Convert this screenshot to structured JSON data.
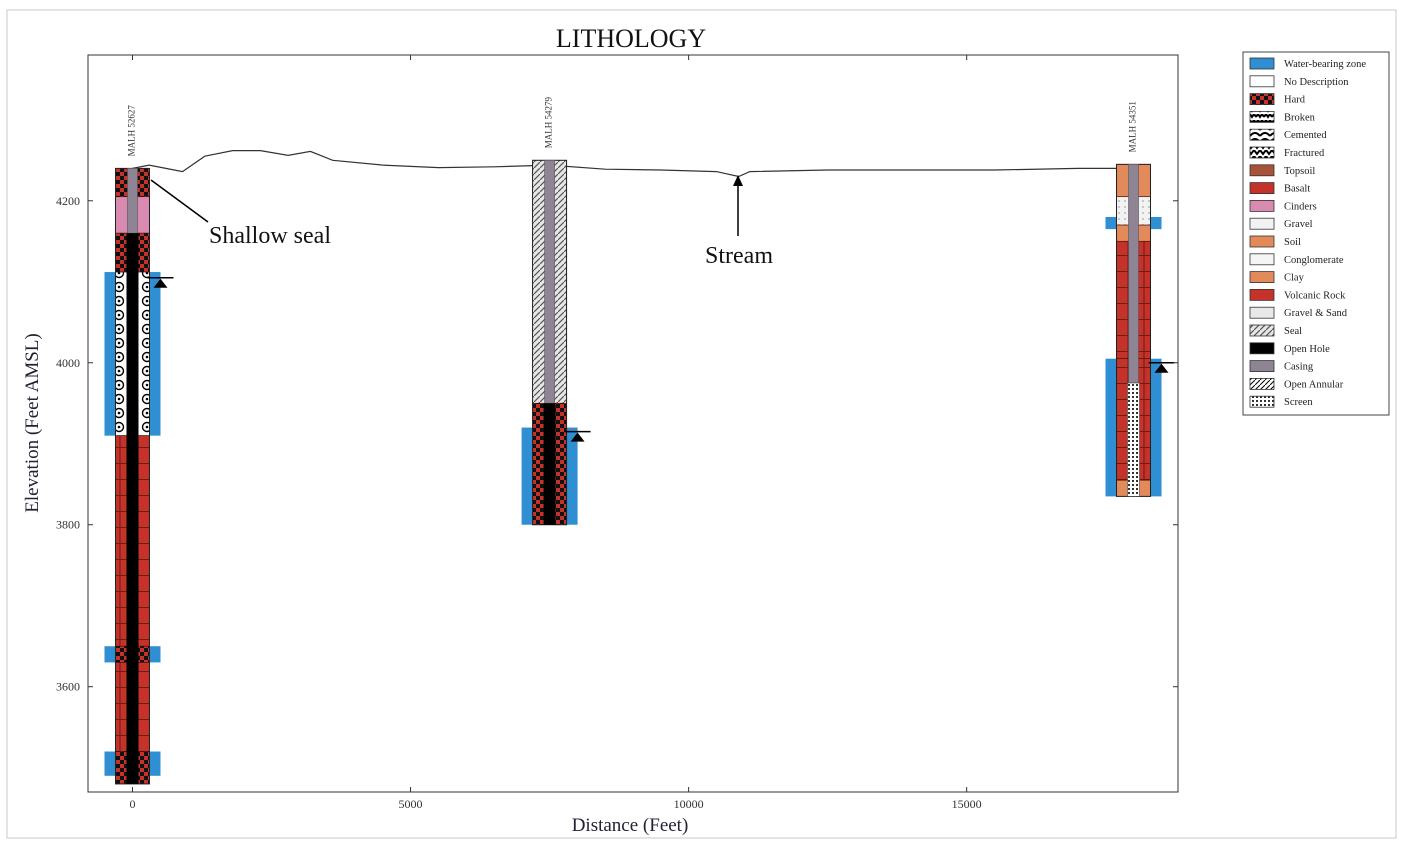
{
  "title": "LITHOLOGY",
  "xlabel": "Distance (Feet)",
  "ylabel": "Elevation (Feet AMSL)",
  "x_ticks": [
    0,
    5000,
    10000,
    15000
  ],
  "y_ticks": [
    3600,
    3800,
    4000,
    4200
  ],
  "x_range": [
    -800,
    18800
  ],
  "y_range": [
    3470,
    4380
  ],
  "colors": {
    "water": "#2f8fd2",
    "basalt": "#c4322a",
    "topsoil": "#a8523a",
    "cinders": "#d98ab0",
    "soil": "#e28a5a",
    "casing": "#8e8494",
    "open_hole": "#000000",
    "seal": "#bfbfbf"
  },
  "annotations": {
    "shallow_seal": "Shallow seal",
    "stream": "Stream"
  },
  "wells": [
    {
      "name": "MALH 52627",
      "x": 0,
      "top": 4240,
      "bottom": 3480,
      "lithology": [
        {
          "top": 4240,
          "bottom": 4205,
          "unit": "Hard"
        },
        {
          "top": 4205,
          "bottom": 4160,
          "unit": "Cinders"
        },
        {
          "top": 4160,
          "bottom": 4112,
          "unit": "Hard"
        },
        {
          "top": 4112,
          "bottom": 3910,
          "unit": "Conglomerate"
        },
        {
          "top": 3910,
          "bottom": 3650,
          "unit": "Basalt"
        },
        {
          "top": 3650,
          "bottom": 3630,
          "unit": "Hard"
        },
        {
          "top": 3630,
          "bottom": 3520,
          "unit": "Basalt"
        },
        {
          "top": 3520,
          "bottom": 3480,
          "unit": "Hard"
        }
      ],
      "water_zones": [
        [
          4112,
          3910
        ],
        [
          3650,
          3630
        ],
        [
          3520,
          3490
        ]
      ],
      "casing": [
        4240,
        4160
      ],
      "open_hole": [
        4160,
        3480
      ],
      "water_level": 4105
    },
    {
      "name": "MALH 54279",
      "x": 7500,
      "top": 4250,
      "bottom": 3800,
      "lithology": [
        {
          "top": 4250,
          "bottom": 3950,
          "unit": "Seal"
        },
        {
          "top": 3950,
          "bottom": 3800,
          "unit": "Hard"
        }
      ],
      "water_zones": [
        [
          3920,
          3800
        ]
      ],
      "casing": [
        4250,
        3950
      ],
      "open_hole": [
        3950,
        3800
      ],
      "water_level": 3915
    },
    {
      "name": "MALH 54351",
      "x": 18000,
      "top": 4245,
      "bottom": 3835,
      "lithology": [
        {
          "top": 4245,
          "bottom": 4205,
          "unit": "Soil"
        },
        {
          "top": 4205,
          "bottom": 4170,
          "unit": "Gravel"
        },
        {
          "top": 4170,
          "bottom": 4150,
          "unit": "Soil"
        },
        {
          "top": 4150,
          "bottom": 4005,
          "unit": "Volcanic Rock"
        },
        {
          "top": 4005,
          "bottom": 3855,
          "unit": "Volcanic Rock"
        },
        {
          "top": 3855,
          "bottom": 3835,
          "unit": "Soil"
        }
      ],
      "water_zones": [
        [
          4180,
          4165
        ],
        [
          4005,
          3835
        ]
      ],
      "casing": [
        4245,
        3975
      ],
      "screen": [
        3975,
        3835
      ],
      "water_level": 4000
    }
  ],
  "ground_profile": [
    [
      0,
      4240
    ],
    [
      300,
      4244
    ],
    [
      600,
      4240
    ],
    [
      900,
      4236
    ],
    [
      1300,
      4255
    ],
    [
      1800,
      4262
    ],
    [
      2300,
      4262
    ],
    [
      2800,
      4256
    ],
    [
      3200,
      4261
    ],
    [
      3600,
      4250
    ],
    [
      4500,
      4244
    ],
    [
      5500,
      4241
    ],
    [
      6500,
      4242
    ],
    [
      7500,
      4244
    ],
    [
      8500,
      4239
    ],
    [
      9500,
      4238
    ],
    [
      10500,
      4236
    ],
    [
      10900,
      4230
    ],
    [
      11100,
      4236
    ],
    [
      12500,
      4238
    ],
    [
      14000,
      4238
    ],
    [
      15500,
      4238
    ],
    [
      17000,
      4240
    ],
    [
      18000,
      4240
    ]
  ],
  "legend": [
    {
      "label": "Water-bearing zone",
      "pattern": "water"
    },
    {
      "label": "No Description",
      "pattern": "blank"
    },
    {
      "label": "Hard",
      "pattern": "hard"
    },
    {
      "label": "Broken",
      "pattern": "broken"
    },
    {
      "label": "Cemented",
      "pattern": "cemented"
    },
    {
      "label": "Fractured",
      "pattern": "fractured"
    },
    {
      "label": "Topsoil",
      "pattern": "topsoil"
    },
    {
      "label": "Basalt",
      "pattern": "basalt"
    },
    {
      "label": "Cinders",
      "pattern": "cinders"
    },
    {
      "label": "Gravel",
      "pattern": "gravel"
    },
    {
      "label": "Soil",
      "pattern": "soil"
    },
    {
      "label": "Conglomerate",
      "pattern": "conglomerate"
    },
    {
      "label": "Clay",
      "pattern": "clay"
    },
    {
      "label": "Volcanic Rock",
      "pattern": "volcanic"
    },
    {
      "label": "Gravel & Sand",
      "pattern": "gravelsand"
    },
    {
      "label": "Seal",
      "pattern": "seal"
    },
    {
      "label": "Open Hole",
      "pattern": "openhole"
    },
    {
      "label": "Casing",
      "pattern": "casing"
    },
    {
      "label": "Open Annular",
      "pattern": "annular"
    },
    {
      "label": "Screen",
      "pattern": "screen"
    }
  ]
}
